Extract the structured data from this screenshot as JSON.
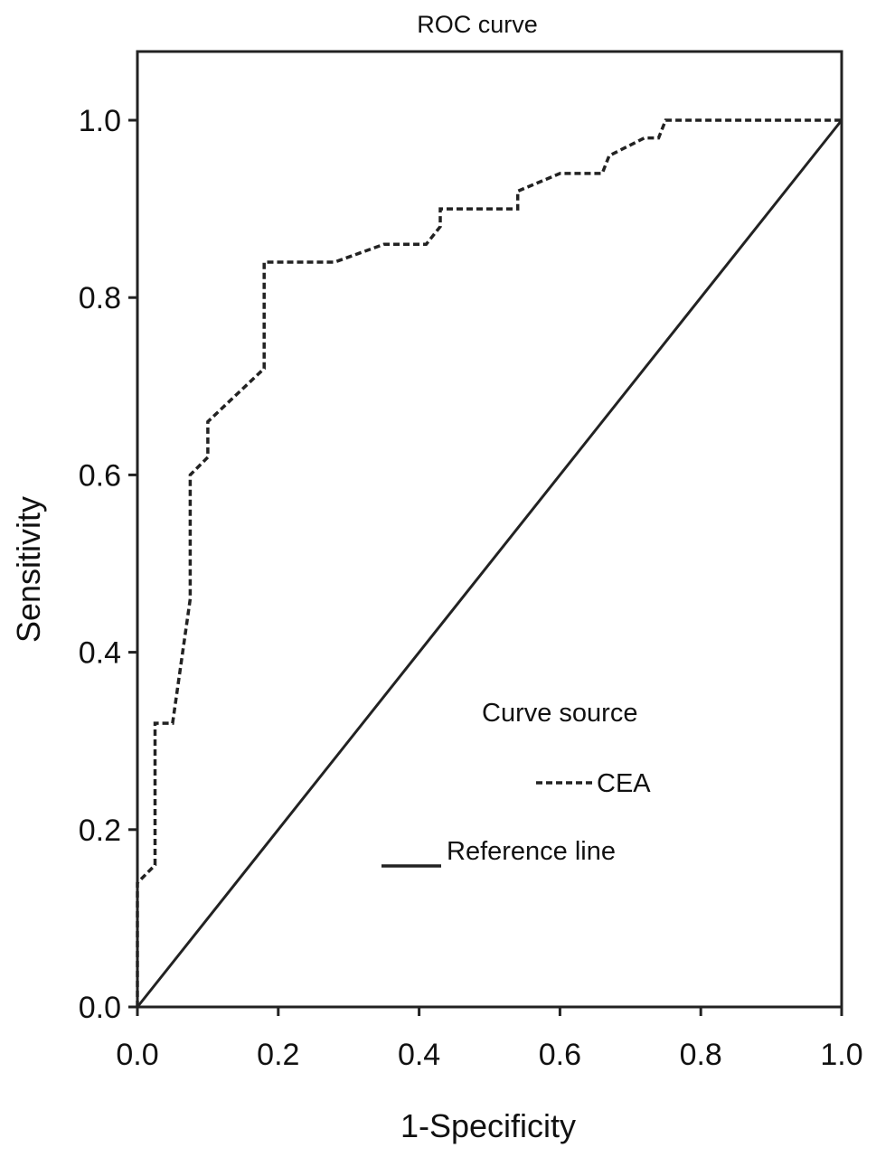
{
  "chart_data": {
    "type": "line",
    "title": "ROC curve",
    "xlabel": "1-Specificity",
    "ylabel": "Sensitivity",
    "xlim": [
      0.0,
      1.0
    ],
    "ylim": [
      0.0,
      1.0
    ],
    "x_ticks": [
      "0.0",
      "0.2",
      "0.4",
      "0.6",
      "0.8",
      "1.0"
    ],
    "y_ticks": [
      "0.0",
      "0.2",
      "0.4",
      "0.6",
      "0.8",
      "1.0"
    ],
    "grid": false,
    "legend": {
      "title": "Curve source",
      "placement": "lower-right",
      "entries": [
        "CEA",
        "Reference line"
      ]
    },
    "series": [
      {
        "name": "CEA",
        "style": "dashed",
        "color": "#222222",
        "x": [
          0.0,
          0.0,
          0.025,
          0.025,
          0.05,
          0.075,
          0.075,
          0.1,
          0.1,
          0.18,
          0.18,
          0.28,
          0.35,
          0.41,
          0.43,
          0.43,
          0.54,
          0.54,
          0.6,
          0.66,
          0.67,
          0.72,
          0.74,
          0.75,
          1.0
        ],
        "y": [
          0.0,
          0.14,
          0.16,
          0.32,
          0.32,
          0.46,
          0.6,
          0.62,
          0.66,
          0.72,
          0.84,
          0.84,
          0.86,
          0.86,
          0.88,
          0.9,
          0.9,
          0.92,
          0.94,
          0.94,
          0.96,
          0.98,
          0.98,
          1.0,
          1.0
        ]
      },
      {
        "name": "Reference line",
        "style": "solid",
        "color": "#222222",
        "x": [
          0.0,
          1.0
        ],
        "y": [
          0.0,
          1.0
        ]
      }
    ]
  }
}
